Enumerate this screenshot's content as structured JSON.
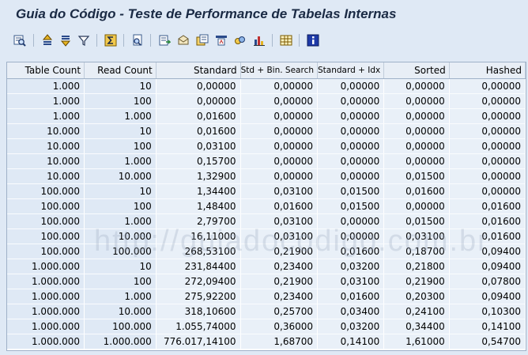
{
  "window": {
    "title": "Guia do Código - Teste de Performance de Tabelas Internas"
  },
  "toolbar": {
    "buttons": [
      {
        "name": "details-icon"
      },
      {
        "name": "sort-ascending-icon"
      },
      {
        "name": "sort-descending-icon"
      },
      {
        "name": "filter-icon"
      },
      {
        "name": "sum-icon"
      },
      {
        "name": "print-preview-icon"
      },
      {
        "name": "export-icon"
      },
      {
        "name": "mail-icon"
      },
      {
        "name": "local-file-icon"
      },
      {
        "name": "abc-analysis-icon"
      },
      {
        "name": "graphic-icon"
      },
      {
        "name": "change-layout-icon"
      },
      {
        "name": "information-icon"
      }
    ]
  },
  "grid": {
    "headers": [
      "Table Count",
      "Read Count",
      "Standard",
      "Std + Bin. Search",
      "Standard + Idx",
      "Sorted",
      "Hashed"
    ],
    "rows": [
      [
        "1.000",
        "10",
        "0,00000",
        "0,00000",
        "0,00000",
        "0,00000",
        "0,00000"
      ],
      [
        "1.000",
        "100",
        "0,00000",
        "0,00000",
        "0,00000",
        "0,00000",
        "0,00000"
      ],
      [
        "1.000",
        "1.000",
        "0,01600",
        "0,00000",
        "0,00000",
        "0,00000",
        "0,00000"
      ],
      [
        "10.000",
        "10",
        "0,01600",
        "0,00000",
        "0,00000",
        "0,00000",
        "0,00000"
      ],
      [
        "10.000",
        "100",
        "0,03100",
        "0,00000",
        "0,00000",
        "0,00000",
        "0,00000"
      ],
      [
        "10.000",
        "1.000",
        "0,15700",
        "0,00000",
        "0,00000",
        "0,00000",
        "0,00000"
      ],
      [
        "10.000",
        "10.000",
        "1,32900",
        "0,00000",
        "0,00000",
        "0,01500",
        "0,00000"
      ],
      [
        "100.000",
        "10",
        "1,34400",
        "0,03100",
        "0,01500",
        "0,01600",
        "0,00000"
      ],
      [
        "100.000",
        "100",
        "1,48400",
        "0,01600",
        "0,01500",
        "0,00000",
        "0,01600"
      ],
      [
        "100.000",
        "1.000",
        "2,79700",
        "0,03100",
        "0,00000",
        "0,01500",
        "0,01600"
      ],
      [
        "100.000",
        "10.000",
        "16,11000",
        "0,03100",
        "0,00000",
        "0,03100",
        "0,01600"
      ],
      [
        "100.000",
        "100.000",
        "268,53100",
        "0,21900",
        "0,01600",
        "0,18700",
        "0,09400"
      ],
      [
        "1.000.000",
        "10",
        "231,84400",
        "0,23400",
        "0,03200",
        "0,21800",
        "0,09400"
      ],
      [
        "1.000.000",
        "100",
        "272,09400",
        "0,21900",
        "0,03100",
        "0,21900",
        "0,07800"
      ],
      [
        "1.000.000",
        "1.000",
        "275,92200",
        "0,23400",
        "0,01600",
        "0,20300",
        "0,09400"
      ],
      [
        "1.000.000",
        "10.000",
        "318,10600",
        "0,25700",
        "0,03400",
        "0,24100",
        "0,10300"
      ],
      [
        "1.000.000",
        "100.000",
        "1.055,74000",
        "0,36000",
        "0,03200",
        "0,34400",
        "0,14100"
      ],
      [
        "1.000.000",
        "1.000.000",
        "776.017,14100",
        "1,68700",
        "0,14100",
        "1,61000",
        "0,54700"
      ]
    ]
  },
  "watermark": "http://guiadocodigo.com.br"
}
